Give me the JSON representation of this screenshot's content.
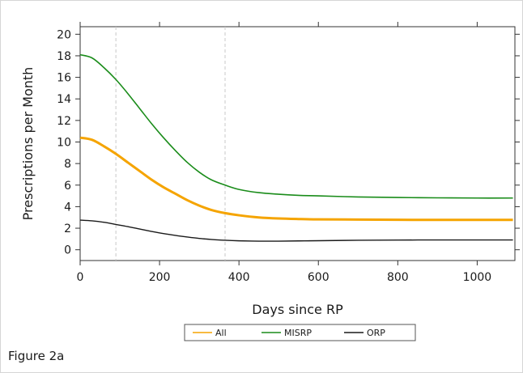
{
  "figure_caption": "Figure 2a",
  "chart_data": {
    "type": "line",
    "xlabel": "Days since RP",
    "ylabel": "Prescriptions per Month",
    "xlim": [
      0,
      1095
    ],
    "ylim": [
      -1,
      20.7
    ],
    "xticks": [
      0,
      200,
      400,
      600,
      800,
      1000
    ],
    "yticks": [
      0,
      2,
      4,
      6,
      8,
      10,
      12,
      14,
      16,
      18,
      20
    ],
    "reference_lines_x": [
      90,
      365
    ],
    "grid": false,
    "legend_position": "bottom",
    "series": [
      {
        "name": "All",
        "color": "#f5a400",
        "x": [
          0,
          30,
          60,
          90,
          120,
          150,
          180,
          210,
          240,
          270,
          300,
          330,
          365,
          400,
          450,
          500,
          550,
          600,
          700,
          800,
          900,
          1000,
          1090
        ],
        "y": [
          10.4,
          10.2,
          9.6,
          8.9,
          8.1,
          7.3,
          6.5,
          5.8,
          5.2,
          4.6,
          4.1,
          3.7,
          3.4,
          3.2,
          3.0,
          2.9,
          2.85,
          2.82,
          2.8,
          2.78,
          2.77,
          2.77,
          2.77
        ]
      },
      {
        "name": "MISRP",
        "color": "#1a8c1a",
        "x": [
          0,
          30,
          60,
          90,
          120,
          150,
          180,
          210,
          240,
          270,
          300,
          330,
          365,
          400,
          450,
          500,
          550,
          600,
          700,
          800,
          900,
          1000,
          1090
        ],
        "y": [
          18.1,
          17.8,
          16.9,
          15.8,
          14.5,
          13.1,
          11.7,
          10.4,
          9.2,
          8.1,
          7.2,
          6.5,
          6.0,
          5.6,
          5.3,
          5.15,
          5.05,
          5.0,
          4.9,
          4.85,
          4.82,
          4.8,
          4.8
        ]
      },
      {
        "name": "ORP",
        "color": "#1a1a1a",
        "x": [
          0,
          30,
          60,
          90,
          120,
          150,
          180,
          210,
          240,
          270,
          300,
          330,
          365,
          400,
          450,
          500,
          550,
          600,
          700,
          800,
          900,
          1000,
          1090
        ],
        "y": [
          2.75,
          2.68,
          2.55,
          2.35,
          2.15,
          1.92,
          1.7,
          1.5,
          1.33,
          1.18,
          1.05,
          0.96,
          0.88,
          0.83,
          0.8,
          0.8,
          0.82,
          0.84,
          0.88,
          0.9,
          0.91,
          0.91,
          0.91
        ]
      }
    ]
  }
}
